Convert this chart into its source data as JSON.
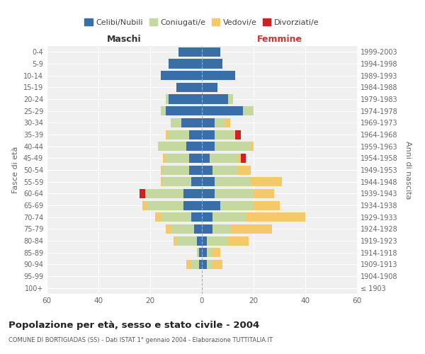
{
  "age_groups": [
    "100+",
    "95-99",
    "90-94",
    "85-89",
    "80-84",
    "75-79",
    "70-74",
    "65-69",
    "60-64",
    "55-59",
    "50-54",
    "45-49",
    "40-44",
    "35-39",
    "30-34",
    "25-29",
    "20-24",
    "15-19",
    "10-14",
    "5-9",
    "0-4"
  ],
  "birth_years": [
    "≤ 1903",
    "1904-1908",
    "1909-1913",
    "1914-1918",
    "1919-1923",
    "1924-1928",
    "1929-1933",
    "1934-1938",
    "1939-1943",
    "1944-1948",
    "1949-1953",
    "1954-1958",
    "1959-1963",
    "1964-1968",
    "1969-1973",
    "1974-1978",
    "1979-1983",
    "1984-1988",
    "1989-1993",
    "1994-1998",
    "1999-2003"
  ],
  "colors": {
    "celibi": "#3a6ea8",
    "coniugati": "#c5d8a0",
    "vedovi": "#f5c96a",
    "divorziati": "#cc2222"
  },
  "males": {
    "celibi": [
      0,
      0,
      1,
      1,
      2,
      3,
      4,
      7,
      7,
      4,
      5,
      5,
      6,
      5,
      8,
      14,
      13,
      10,
      16,
      13,
      9
    ],
    "coniugati": [
      0,
      0,
      3,
      1,
      8,
      9,
      12,
      14,
      15,
      11,
      10,
      9,
      11,
      8,
      4,
      2,
      1,
      0,
      0,
      0,
      0
    ],
    "vedovi": [
      0,
      0,
      2,
      0,
      1,
      2,
      2,
      2,
      0,
      1,
      1,
      1,
      0,
      1,
      0,
      0,
      0,
      0,
      0,
      0,
      0
    ],
    "divorziati": [
      0,
      0,
      0,
      0,
      0,
      0,
      0,
      0,
      2,
      0,
      0,
      0,
      0,
      0,
      0,
      0,
      0,
      0,
      0,
      0,
      0
    ]
  },
  "females": {
    "celibi": [
      0,
      0,
      2,
      2,
      2,
      4,
      4,
      7,
      5,
      5,
      4,
      3,
      5,
      5,
      5,
      16,
      10,
      6,
      13,
      8,
      7
    ],
    "coniugati": [
      0,
      0,
      2,
      2,
      8,
      7,
      13,
      13,
      15,
      14,
      10,
      11,
      14,
      8,
      4,
      4,
      2,
      0,
      0,
      0,
      0
    ],
    "vedovi": [
      0,
      0,
      4,
      3,
      8,
      16,
      23,
      10,
      8,
      12,
      5,
      1,
      1,
      0,
      2,
      0,
      0,
      0,
      0,
      0,
      0
    ],
    "divorziati": [
      0,
      0,
      0,
      0,
      0,
      0,
      0,
      0,
      0,
      0,
      0,
      2,
      0,
      2,
      0,
      0,
      0,
      0,
      0,
      0,
      0
    ]
  },
  "title": "Popolazione per età, sesso e stato civile - 2004",
  "subtitle": "COMUNE DI BORTIGIADAS (SS) - Dati ISTAT 1° gennaio 2004 - Elaborazione TUTTITALIA.IT",
  "xlabel_left": "Maschi",
  "xlabel_right": "Femmine",
  "ylabel_left": "Fasce di età",
  "ylabel_right": "Anni di nascita",
  "xlim": 60,
  "background_color": "#ffffff",
  "plot_bg_color": "#f0f0f0",
  "grid_color": "#cccccc"
}
